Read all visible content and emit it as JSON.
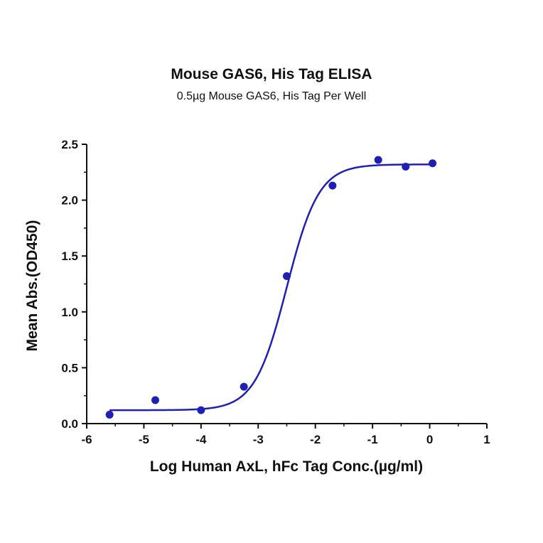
{
  "chart_data": {
    "type": "scatter",
    "title": "Mouse GAS6, His Tag ELISA",
    "subtitle": "0.5µg Mouse GAS6, His Tag Per Well",
    "xlabel": "Log Human AxL, hFc Tag Conc.(µg/ml)",
    "ylabel": "Mean Abs.(OD450)",
    "xlim": [
      -6,
      1
    ],
    "ylim": [
      0,
      2.5
    ],
    "x_ticks": [
      "-6",
      "-5",
      "-4",
      "-3",
      "-2",
      "-1",
      "0",
      "1"
    ],
    "y_ticks": [
      "0.0",
      "0.5",
      "1.0",
      "1.5",
      "2.0",
      "2.5"
    ],
    "grid": false,
    "colors": {
      "series": "#1f1fb4",
      "axis": "#111111"
    },
    "series": [
      {
        "points": [
          {
            "x": -5.6,
            "y": 0.08
          },
          {
            "x": -4.8,
            "y": 0.21
          },
          {
            "x": -4.0,
            "y": 0.12
          },
          {
            "x": -3.25,
            "y": 0.33
          },
          {
            "x": -2.5,
            "y": 1.32
          },
          {
            "x": -1.7,
            "y": 2.13
          },
          {
            "x": -0.9,
            "y": 2.36
          },
          {
            "x": -0.42,
            "y": 2.3
          },
          {
            "x": 0.05,
            "y": 2.33
          }
        ],
        "fit": {
          "model": "4PL",
          "bottom": 0.12,
          "top": 2.32,
          "logEC50": -2.5,
          "hill": 1.55,
          "x_range": [
            -5.6,
            0.05
          ]
        }
      }
    ]
  }
}
